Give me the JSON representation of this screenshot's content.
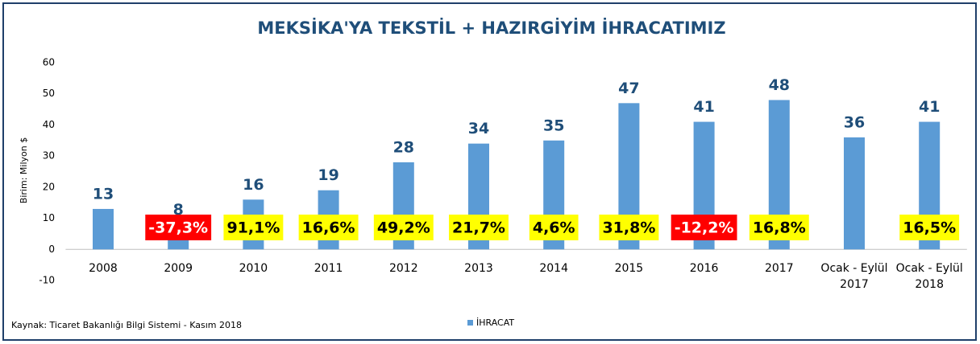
{
  "chart_data": {
    "type": "bar",
    "title": "MEKSİKA'YA TEKSTİL + HAZIRGİYİM İHRACATIMIZ",
    "y_label": "Birim: Milyon $",
    "source": "Kaynak: Ticaret Bakanlığı Bilgi Sistemi - Kasım 2018",
    "categories": [
      "2008",
      "2009",
      "2010",
      "2011",
      "2012",
      "2013",
      "2014",
      "2015",
      "2016",
      "2017",
      "Ocak - Eylül 2017",
      "Ocak - Eylül 2018"
    ],
    "series": [
      {
        "name": "İHRACAT",
        "color": "#5b9bd5",
        "values": [
          13,
          8,
          16,
          19,
          28,
          34,
          35,
          47,
          41,
          48,
          36,
          41
        ]
      }
    ],
    "change_labels": [
      null,
      {
        "text": "-37,3%",
        "color": "#ff0000",
        "text_color": "#ffffff"
      },
      {
        "text": "91,1%",
        "color": "#ffff00",
        "text_color": "#000000"
      },
      {
        "text": "16,6%",
        "color": "#ffff00",
        "text_color": "#000000"
      },
      {
        "text": "49,2%",
        "color": "#ffff00",
        "text_color": "#000000"
      },
      {
        "text": "21,7%",
        "color": "#ffff00",
        "text_color": "#000000"
      },
      {
        "text": "4,6%",
        "color": "#ffff00",
        "text_color": "#000000"
      },
      {
        "text": "31,8%",
        "color": "#ffff00",
        "text_color": "#000000"
      },
      {
        "text": "-12,2%",
        "color": "#ff0000",
        "text_color": "#ffffff"
      },
      {
        "text": "16,8%",
        "color": "#ffff00",
        "text_color": "#000000"
      },
      null,
      {
        "text": "16,5%",
        "color": "#ffff00",
        "text_color": "#000000"
      }
    ],
    "ylim": [
      -10,
      60
    ],
    "yticks": [
      -10,
      0,
      10,
      20,
      30,
      40,
      50,
      60
    ],
    "grid": false,
    "legend": "bottom"
  }
}
